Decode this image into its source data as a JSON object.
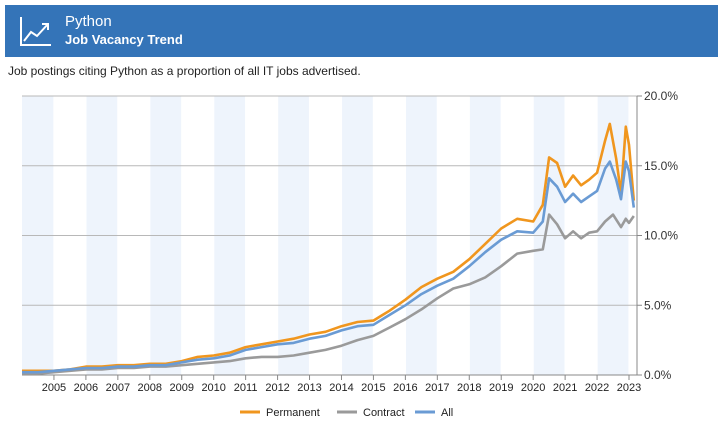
{
  "header": {
    "title": "Python",
    "subtitle": "Job Vacancy Trend",
    "icon": "trend-chart-icon",
    "background": "#3474b8"
  },
  "description": "Job postings citing Python as a proportion of all IT jobs advertised.",
  "chart_data": {
    "type": "line",
    "x_ticks": [
      "2005",
      "2006",
      "2007",
      "2008",
      "2009",
      "2010",
      "2011",
      "2012",
      "2013",
      "2014",
      "2015",
      "2016",
      "2017",
      "2018",
      "2019",
      "2020",
      "2021",
      "2022",
      "2023"
    ],
    "y_ticks": [
      "0.0%",
      "5.0%",
      "10.0%",
      "15.0%",
      "20.0%"
    ],
    "xlim": [
      2004.0,
      2023.25
    ],
    "ylim": [
      0,
      20
    ],
    "y_axis_side": "right",
    "grid": true,
    "legend_position": "bottom",
    "shaded_year_bands": "alternate years",
    "series": [
      {
        "name": "Permanent",
        "color": "#f0961e",
        "x": [
          2004.0,
          2004.5,
          2005.0,
          2005.5,
          2006.0,
          2006.5,
          2007.0,
          2007.5,
          2008.0,
          2008.5,
          2009.0,
          2009.5,
          2010.0,
          2010.5,
          2011.0,
          2011.5,
          2012.0,
          2012.5,
          2013.0,
          2013.5,
          2014.0,
          2014.5,
          2015.0,
          2015.5,
          2016.0,
          2016.5,
          2017.0,
          2017.5,
          2018.0,
          2018.5,
          2019.0,
          2019.5,
          2020.0,
          2020.3,
          2020.5,
          2020.75,
          2021.0,
          2021.25,
          2021.5,
          2021.75,
          2022.0,
          2022.25,
          2022.4,
          2022.6,
          2022.75,
          2022.9,
          2023.0,
          2023.15
        ],
        "values": [
          0.3,
          0.3,
          0.3,
          0.4,
          0.6,
          0.6,
          0.7,
          0.7,
          0.8,
          0.8,
          1.0,
          1.3,
          1.4,
          1.6,
          2.0,
          2.2,
          2.4,
          2.6,
          2.9,
          3.1,
          3.5,
          3.8,
          3.9,
          4.6,
          5.4,
          6.3,
          6.9,
          7.4,
          8.3,
          9.4,
          10.5,
          11.2,
          11.0,
          12.2,
          15.6,
          15.2,
          13.5,
          14.3,
          13.6,
          14.0,
          14.5,
          16.8,
          18.0,
          15.5,
          13.0,
          17.8,
          16.5,
          12.5
        ]
      },
      {
        "name": "Contract",
        "color": "#9a9a9a",
        "x": [
          2004.0,
          2004.5,
          2005.0,
          2005.5,
          2006.0,
          2006.5,
          2007.0,
          2007.5,
          2008.0,
          2008.5,
          2009.0,
          2009.5,
          2010.0,
          2010.5,
          2011.0,
          2011.5,
          2012.0,
          2012.5,
          2013.0,
          2013.5,
          2014.0,
          2014.5,
          2015.0,
          2015.5,
          2016.0,
          2016.5,
          2017.0,
          2017.5,
          2018.0,
          2018.5,
          2019.0,
          2019.5,
          2020.0,
          2020.3,
          2020.5,
          2020.75,
          2021.0,
          2021.25,
          2021.5,
          2021.75,
          2022.0,
          2022.25,
          2022.5,
          2022.75,
          2022.9,
          2023.0,
          2023.15
        ],
        "values": [
          0.1,
          0.1,
          0.2,
          0.3,
          0.4,
          0.4,
          0.5,
          0.5,
          0.6,
          0.6,
          0.7,
          0.8,
          0.9,
          1.0,
          1.2,
          1.3,
          1.3,
          1.4,
          1.6,
          1.8,
          2.1,
          2.5,
          2.8,
          3.4,
          4.0,
          4.7,
          5.5,
          6.2,
          6.5,
          7.0,
          7.8,
          8.7,
          8.9,
          9.0,
          11.5,
          10.8,
          9.8,
          10.3,
          9.8,
          10.2,
          10.3,
          11.0,
          11.5,
          10.6,
          11.2,
          10.9,
          11.4
        ]
      },
      {
        "name": "All",
        "color": "#6a9bd4",
        "x": [
          2004.0,
          2004.5,
          2005.0,
          2005.5,
          2006.0,
          2006.5,
          2007.0,
          2007.5,
          2008.0,
          2008.5,
          2009.0,
          2009.5,
          2010.0,
          2010.5,
          2011.0,
          2011.5,
          2012.0,
          2012.5,
          2013.0,
          2013.5,
          2014.0,
          2014.5,
          2015.0,
          2015.5,
          2016.0,
          2016.5,
          2017.0,
          2017.5,
          2018.0,
          2018.5,
          2019.0,
          2019.5,
          2020.0,
          2020.3,
          2020.5,
          2020.75,
          2021.0,
          2021.25,
          2021.5,
          2021.75,
          2022.0,
          2022.25,
          2022.4,
          2022.6,
          2022.75,
          2022.9,
          2023.0,
          2023.15
        ],
        "values": [
          0.2,
          0.2,
          0.3,
          0.4,
          0.5,
          0.5,
          0.6,
          0.6,
          0.7,
          0.7,
          0.9,
          1.1,
          1.2,
          1.4,
          1.8,
          2.0,
          2.2,
          2.3,
          2.6,
          2.8,
          3.2,
          3.5,
          3.6,
          4.3,
          5.0,
          5.8,
          6.4,
          6.9,
          7.8,
          8.8,
          9.7,
          10.3,
          10.2,
          11.0,
          14.1,
          13.5,
          12.4,
          13.0,
          12.4,
          12.8,
          13.2,
          14.8,
          15.3,
          14.0,
          12.6,
          15.3,
          14.6,
          12.0
        ]
      }
    ]
  }
}
